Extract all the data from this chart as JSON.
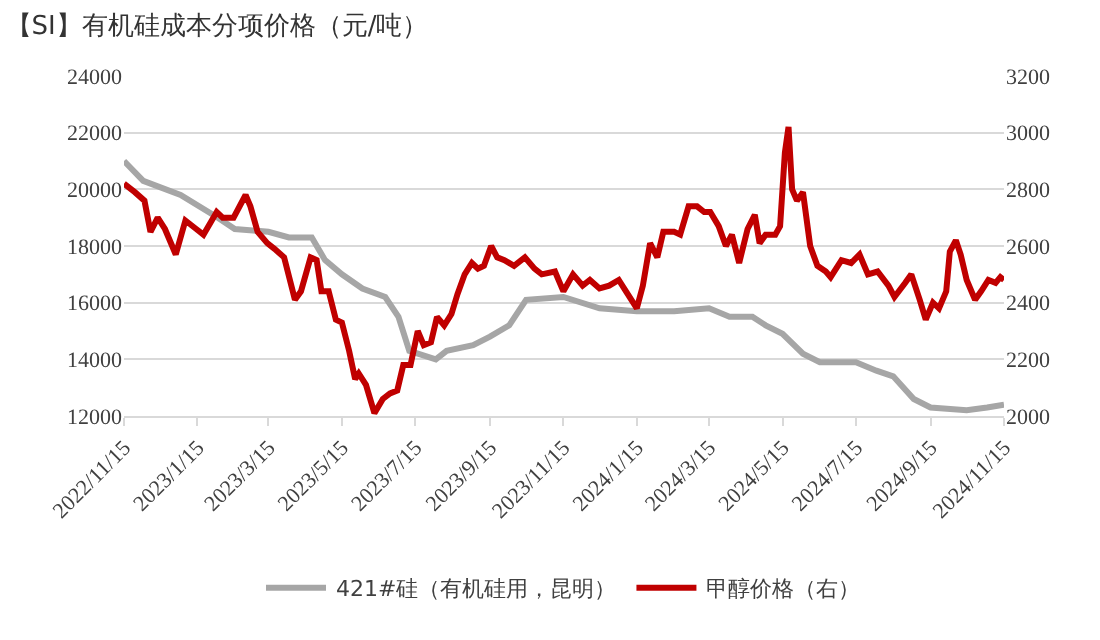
{
  "chart_data": {
    "type": "line",
    "title": "【SI】有机硅成本分项价格（元/吨）",
    "legend": "bottom",
    "grid": "y",
    "line_style": "solid",
    "marker": "none",
    "xlim": [
      "2022-11-15",
      "2024-11-15"
    ],
    "xticks": [
      {
        "value": "2022-11-15",
        "label": "2022/11/15"
      },
      {
        "value": "2023-01-15",
        "label": "2023/1/15"
      },
      {
        "value": "2023-03-15",
        "label": "2023/3/15"
      },
      {
        "value": "2023-05-15",
        "label": "2023/5/15"
      },
      {
        "value": "2023-07-15",
        "label": "2023/7/15"
      },
      {
        "value": "2023-09-15",
        "label": "2023/9/15"
      },
      {
        "value": "2023-11-15",
        "label": "2023/11/15"
      },
      {
        "value": "2024-01-15",
        "label": "2024/1/15"
      },
      {
        "value": "2024-03-15",
        "label": "2024/3/15"
      },
      {
        "value": "2024-05-15",
        "label": "2024/5/15"
      },
      {
        "value": "2024-07-15",
        "label": "2024/7/15"
      },
      {
        "value": "2024-09-15",
        "label": "2024/9/15"
      },
      {
        "value": "2024-11-15",
        "label": "2024/11/15"
      }
    ],
    "ylim": [
      12000,
      24000
    ],
    "yticks": [
      12000,
      14000,
      16000,
      18000,
      20000,
      22000,
      24000
    ],
    "y2lim": [
      2000,
      3200
    ],
    "y2ticks": [
      2000,
      2200,
      2400,
      2600,
      2800,
      3000,
      3200
    ],
    "series": [
      {
        "name": "421#硅（有机硅用，昆明）",
        "color": "#a6a6a6",
        "x": [
          "2022-11-15",
          "2022-12-01",
          "2023-01-01",
          "2023-02-01",
          "2023-02-15",
          "2023-03-15",
          "2023-04-01",
          "2023-04-20",
          "2023-05-01",
          "2023-05-15",
          "2023-06-01",
          "2023-06-20",
          "2023-07-01",
          "2023-07-10",
          "2023-08-01",
          "2023-08-10",
          "2023-09-01",
          "2023-09-15",
          "2023-10-01",
          "2023-10-15",
          "2023-11-15",
          "2023-12-15",
          "2024-01-15",
          "2024-02-15",
          "2024-03-15",
          "2024-04-01",
          "2024-04-20",
          "2024-05-01",
          "2024-05-15",
          "2024-06-01",
          "2024-06-15",
          "2024-07-15",
          "2024-08-01",
          "2024-08-15",
          "2024-09-01",
          "2024-09-15",
          "2024-10-15",
          "2024-11-01",
          "2024-11-15"
        ],
        "values": [
          21000,
          20300,
          19800,
          19000,
          18600,
          18500,
          18300,
          18300,
          17500,
          17000,
          16500,
          16200,
          15500,
          14300,
          14000,
          14300,
          14500,
          14800,
          15200,
          16100,
          16200,
          15800,
          15700,
          15700,
          15800,
          15500,
          15500,
          15200,
          14900,
          14200,
          13900,
          13900,
          13600,
          13400,
          12600,
          12300,
          12200,
          12300,
          12400
        ]
      },
      {
        "name": "甲醇价格（右）",
        "color": "#c00000",
        "axis": "y2",
        "x": [
          "2022-11-15",
          "2022-11-24",
          "2022-12-02",
          "2022-12-07",
          "2022-12-13",
          "2022-12-19",
          "2022-12-25",
          "2022-12-28",
          "2023-01-05",
          "2023-01-14",
          "2023-01-20",
          "2023-01-31",
          "2023-02-05",
          "2023-02-14",
          "2023-02-24",
          "2023-02-28",
          "2023-03-06",
          "2023-03-14",
          "2023-03-20",
          "2023-03-28",
          "2023-04-06",
          "2023-04-11",
          "2023-04-19",
          "2023-04-24",
          "2023-04-28",
          "2023-05-04",
          "2023-05-10",
          "2023-05-15",
          "2023-05-21",
          "2023-05-26",
          "2023-05-29",
          "2023-06-04",
          "2023-06-11",
          "2023-06-18",
          "2023-06-24",
          "2023-06-30",
          "2023-07-05",
          "2023-07-11",
          "2023-07-17",
          "2023-07-22",
          "2023-07-28",
          "2023-08-02",
          "2023-08-08",
          "2023-08-14",
          "2023-08-19",
          "2023-08-25",
          "2023-08-31",
          "2023-09-05",
          "2023-09-10",
          "2023-09-16",
          "2023-09-21",
          "2023-09-27",
          "2023-10-05",
          "2023-10-14",
          "2023-10-22",
          "2023-10-28",
          "2023-11-08",
          "2023-11-15",
          "2023-11-23",
          "2023-12-01",
          "2023-12-07",
          "2023-12-15",
          "2023-12-23",
          "2023-12-31",
          "2024-01-06",
          "2024-01-15",
          "2024-01-20",
          "2024-01-26",
          "2024-02-01",
          "2024-02-06",
          "2024-02-15",
          "2024-02-20",
          "2024-02-27",
          "2024-03-05",
          "2024-03-11",
          "2024-03-16",
          "2024-03-23",
          "2024-03-29",
          "2024-04-03",
          "2024-04-09",
          "2024-04-16",
          "2024-04-22",
          "2024-04-26",
          "2024-05-01",
          "2024-05-09",
          "2024-05-13",
          "2024-05-17",
          "2024-05-20",
          "2024-05-23",
          "2024-05-27",
          "2024-06-01",
          "2024-06-07",
          "2024-06-13",
          "2024-06-20",
          "2024-06-24",
          "2024-07-03",
          "2024-07-11",
          "2024-07-18",
          "2024-07-25",
          "2024-08-02",
          "2024-08-11",
          "2024-08-16",
          "2024-08-25",
          "2024-08-30",
          "2024-09-06",
          "2024-09-11",
          "2024-09-17",
          "2024-09-22",
          "2024-09-28",
          "2024-10-01",
          "2024-10-06",
          "2024-10-10",
          "2024-10-15",
          "2024-10-22",
          "2024-10-27",
          "2024-11-02",
          "2024-11-08",
          "2024-11-12",
          "2024-11-15"
        ],
        "values": [
          2820,
          2790,
          2760,
          2650,
          2700,
          2660,
          2600,
          2570,
          2690,
          2660,
          2640,
          2720,
          2700,
          2700,
          2780,
          2740,
          2650,
          2610,
          2590,
          2560,
          2410,
          2440,
          2560,
          2550,
          2440,
          2440,
          2340,
          2330,
          2230,
          2130,
          2150,
          2110,
          2010,
          2060,
          2080,
          2090,
          2180,
          2180,
          2300,
          2250,
          2260,
          2350,
          2320,
          2360,
          2430,
          2500,
          2540,
          2520,
          2530,
          2600,
          2560,
          2550,
          2530,
          2560,
          2520,
          2500,
          2510,
          2440,
          2500,
          2460,
          2480,
          2450,
          2460,
          2480,
          2440,
          2380,
          2460,
          2610,
          2560,
          2650,
          2650,
          2640,
          2740,
          2740,
          2720,
          2720,
          2670,
          2600,
          2640,
          2540,
          2660,
          2710,
          2610,
          2640,
          2640,
          2670,
          2930,
          3020,
          2800,
          2760,
          2790,
          2600,
          2530,
          2510,
          2490,
          2550,
          2540,
          2570,
          2500,
          2510,
          2460,
          2420,
          2470,
          2500,
          2410,
          2340,
          2400,
          2380,
          2440,
          2580,
          2620,
          2570,
          2480,
          2410,
          2440,
          2480,
          2470,
          2490,
          2480
        ]
      }
    ]
  }
}
